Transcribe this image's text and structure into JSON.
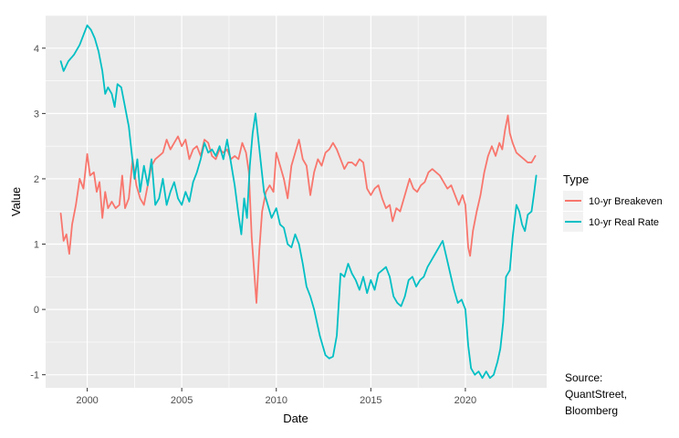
{
  "chart_data": {
    "type": "line",
    "title": "",
    "xlabel": "Date",
    "ylabel": "Value",
    "xlim": [
      1997.8,
      2024.3
    ],
    "ylim": [
      -1.2,
      4.5
    ],
    "x_ticks": [
      2000,
      2005,
      2010,
      2015,
      2020
    ],
    "x_tick_labels": [
      "2000",
      "2005",
      "2010",
      "2015",
      "2020"
    ],
    "y_ticks": [
      -1,
      0,
      1,
      2,
      3,
      4
    ],
    "y_tick_labels": [
      "-1",
      "0",
      "1",
      "2",
      "3",
      "4"
    ],
    "grid": true,
    "legend": {
      "title": "Type",
      "position": "right"
    },
    "series": [
      {
        "name": "10-yr Breakeven",
        "color": "#F8766D",
        "points": [
          [
            1998.6,
            1.47
          ],
          [
            1998.75,
            1.05
          ],
          [
            1998.9,
            1.15
          ],
          [
            1999.05,
            0.85
          ],
          [
            1999.2,
            1.3
          ],
          [
            1999.4,
            1.6
          ],
          [
            1999.6,
            2.0
          ],
          [
            1999.8,
            1.85
          ],
          [
            2000.0,
            2.38
          ],
          [
            2000.15,
            2.05
          ],
          [
            2000.35,
            2.1
          ],
          [
            2000.5,
            1.8
          ],
          [
            2000.65,
            1.95
          ],
          [
            2000.8,
            1.4
          ],
          [
            2000.95,
            1.8
          ],
          [
            2001.1,
            1.55
          ],
          [
            2001.3,
            1.65
          ],
          [
            2001.5,
            1.55
          ],
          [
            2001.7,
            1.6
          ],
          [
            2001.85,
            2.05
          ],
          [
            2002.0,
            1.55
          ],
          [
            2002.2,
            1.7
          ],
          [
            2002.4,
            2.3
          ],
          [
            2002.6,
            1.9
          ],
          [
            2002.8,
            1.7
          ],
          [
            2003.0,
            1.6
          ],
          [
            2003.2,
            1.9
          ],
          [
            2003.4,
            2.2
          ],
          [
            2003.6,
            2.3
          ],
          [
            2003.8,
            2.35
          ],
          [
            2004.0,
            2.4
          ],
          [
            2004.2,
            2.6
          ],
          [
            2004.4,
            2.45
          ],
          [
            2004.6,
            2.55
          ],
          [
            2004.8,
            2.65
          ],
          [
            2005.0,
            2.5
          ],
          [
            2005.2,
            2.6
          ],
          [
            2005.4,
            2.3
          ],
          [
            2005.6,
            2.45
          ],
          [
            2005.8,
            2.5
          ],
          [
            2006.0,
            2.35
          ],
          [
            2006.2,
            2.6
          ],
          [
            2006.4,
            2.55
          ],
          [
            2006.6,
            2.35
          ],
          [
            2006.8,
            2.3
          ],
          [
            2007.0,
            2.45
          ],
          [
            2007.2,
            2.4
          ],
          [
            2007.4,
            2.45
          ],
          [
            2007.6,
            2.3
          ],
          [
            2007.8,
            2.35
          ],
          [
            2008.0,
            2.3
          ],
          [
            2008.2,
            2.55
          ],
          [
            2008.4,
            2.4
          ],
          [
            2008.55,
            2.1
          ],
          [
            2008.7,
            1.1
          ],
          [
            2008.85,
            0.5
          ],
          [
            2008.95,
            0.1
          ],
          [
            2009.1,
            0.9
          ],
          [
            2009.25,
            1.5
          ],
          [
            2009.45,
            1.8
          ],
          [
            2009.65,
            1.9
          ],
          [
            2009.85,
            1.8
          ],
          [
            2010.0,
            2.4
          ],
          [
            2010.2,
            2.2
          ],
          [
            2010.4,
            2.0
          ],
          [
            2010.6,
            1.7
          ],
          [
            2010.8,
            2.2
          ],
          [
            2011.0,
            2.4
          ],
          [
            2011.2,
            2.6
          ],
          [
            2011.4,
            2.3
          ],
          [
            2011.6,
            2.2
          ],
          [
            2011.8,
            1.75
          ],
          [
            2012.0,
            2.1
          ],
          [
            2012.2,
            2.3
          ],
          [
            2012.4,
            2.2
          ],
          [
            2012.6,
            2.4
          ],
          [
            2012.8,
            2.45
          ],
          [
            2013.0,
            2.55
          ],
          [
            2013.2,
            2.45
          ],
          [
            2013.4,
            2.3
          ],
          [
            2013.6,
            2.15
          ],
          [
            2013.8,
            2.25
          ],
          [
            2014.0,
            2.25
          ],
          [
            2014.2,
            2.2
          ],
          [
            2014.4,
            2.3
          ],
          [
            2014.6,
            2.25
          ],
          [
            2014.8,
            1.85
          ],
          [
            2015.0,
            1.75
          ],
          [
            2015.2,
            1.85
          ],
          [
            2015.4,
            1.9
          ],
          [
            2015.6,
            1.7
          ],
          [
            2015.8,
            1.55
          ],
          [
            2016.0,
            1.6
          ],
          [
            2016.15,
            1.35
          ],
          [
            2016.35,
            1.55
          ],
          [
            2016.55,
            1.5
          ],
          [
            2016.75,
            1.7
          ],
          [
            2016.9,
            1.85
          ],
          [
            2017.05,
            2.0
          ],
          [
            2017.25,
            1.85
          ],
          [
            2017.45,
            1.8
          ],
          [
            2017.65,
            1.9
          ],
          [
            2017.85,
            1.95
          ],
          [
            2018.05,
            2.1
          ],
          [
            2018.25,
            2.15
          ],
          [
            2018.45,
            2.1
          ],
          [
            2018.65,
            2.05
          ],
          [
            2018.85,
            1.95
          ],
          [
            2019.05,
            1.85
          ],
          [
            2019.25,
            1.9
          ],
          [
            2019.45,
            1.75
          ],
          [
            2019.65,
            1.6
          ],
          [
            2019.85,
            1.75
          ],
          [
            2020.0,
            1.6
          ],
          [
            2020.15,
            0.95
          ],
          [
            2020.25,
            0.82
          ],
          [
            2020.4,
            1.2
          ],
          [
            2020.6,
            1.5
          ],
          [
            2020.8,
            1.75
          ],
          [
            2021.0,
            2.1
          ],
          [
            2021.2,
            2.35
          ],
          [
            2021.4,
            2.5
          ],
          [
            2021.6,
            2.35
          ],
          [
            2021.8,
            2.55
          ],
          [
            2021.95,
            2.45
          ],
          [
            2022.1,
            2.75
          ],
          [
            2022.25,
            2.97
          ],
          [
            2022.35,
            2.7
          ],
          [
            2022.5,
            2.55
          ],
          [
            2022.7,
            2.4
          ],
          [
            2022.9,
            2.35
          ],
          [
            2023.1,
            2.3
          ],
          [
            2023.3,
            2.25
          ],
          [
            2023.5,
            2.25
          ],
          [
            2023.7,
            2.35
          ]
        ]
      },
      {
        "name": "10-yr Real Rate",
        "color": "#00BFC4",
        "points": [
          [
            1998.6,
            3.8
          ],
          [
            1998.75,
            3.65
          ],
          [
            1999.0,
            3.8
          ],
          [
            1999.3,
            3.9
          ],
          [
            1999.6,
            4.05
          ],
          [
            1999.8,
            4.2
          ],
          [
            2000.0,
            4.35
          ],
          [
            2000.2,
            4.28
          ],
          [
            2000.4,
            4.15
          ],
          [
            2000.6,
            3.95
          ],
          [
            2000.8,
            3.65
          ],
          [
            2000.95,
            3.3
          ],
          [
            2001.1,
            3.4
          ],
          [
            2001.3,
            3.3
          ],
          [
            2001.45,
            3.1
          ],
          [
            2001.6,
            3.45
          ],
          [
            2001.8,
            3.4
          ],
          [
            2002.0,
            3.1
          ],
          [
            2002.2,
            2.8
          ],
          [
            2002.35,
            2.4
          ],
          [
            2002.5,
            2.0
          ],
          [
            2002.65,
            2.3
          ],
          [
            2002.8,
            1.8
          ],
          [
            2003.0,
            2.2
          ],
          [
            2003.2,
            1.9
          ],
          [
            2003.4,
            2.3
          ],
          [
            2003.6,
            1.6
          ],
          [
            2003.8,
            1.7
          ],
          [
            2004.0,
            2.0
          ],
          [
            2004.2,
            1.6
          ],
          [
            2004.4,
            1.8
          ],
          [
            2004.6,
            1.95
          ],
          [
            2004.8,
            1.7
          ],
          [
            2005.0,
            1.6
          ],
          [
            2005.2,
            1.8
          ],
          [
            2005.4,
            1.65
          ],
          [
            2005.6,
            1.95
          ],
          [
            2005.8,
            2.1
          ],
          [
            2006.0,
            2.3
          ],
          [
            2006.2,
            2.55
          ],
          [
            2006.4,
            2.4
          ],
          [
            2006.6,
            2.45
          ],
          [
            2006.8,
            2.35
          ],
          [
            2007.0,
            2.5
          ],
          [
            2007.2,
            2.3
          ],
          [
            2007.4,
            2.6
          ],
          [
            2007.6,
            2.25
          ],
          [
            2007.8,
            1.9
          ],
          [
            2008.0,
            1.45
          ],
          [
            2008.15,
            1.15
          ],
          [
            2008.3,
            1.7
          ],
          [
            2008.45,
            1.4
          ],
          [
            2008.6,
            2.2
          ],
          [
            2008.75,
            2.7
          ],
          [
            2008.9,
            3.0
          ],
          [
            2009.05,
            2.6
          ],
          [
            2009.2,
            2.2
          ],
          [
            2009.35,
            1.8
          ],
          [
            2009.55,
            1.6
          ],
          [
            2009.75,
            1.4
          ],
          [
            2010.0,
            1.55
          ],
          [
            2010.2,
            1.3
          ],
          [
            2010.4,
            1.25
          ],
          [
            2010.6,
            1.0
          ],
          [
            2010.8,
            0.95
          ],
          [
            2011.0,
            1.15
          ],
          [
            2011.2,
            1.0
          ],
          [
            2011.4,
            0.7
          ],
          [
            2011.6,
            0.35
          ],
          [
            2011.8,
            0.2
          ],
          [
            2012.0,
            0.0
          ],
          [
            2012.15,
            -0.2
          ],
          [
            2012.3,
            -0.4
          ],
          [
            2012.45,
            -0.55
          ],
          [
            2012.6,
            -0.7
          ],
          [
            2012.8,
            -0.75
          ],
          [
            2013.0,
            -0.72
          ],
          [
            2013.2,
            -0.4
          ],
          [
            2013.4,
            0.55
          ],
          [
            2013.6,
            0.5
          ],
          [
            2013.8,
            0.7
          ],
          [
            2014.0,
            0.55
          ],
          [
            2014.2,
            0.45
          ],
          [
            2014.4,
            0.3
          ],
          [
            2014.6,
            0.5
          ],
          [
            2014.8,
            0.25
          ],
          [
            2015.0,
            0.45
          ],
          [
            2015.2,
            0.3
          ],
          [
            2015.4,
            0.55
          ],
          [
            2015.6,
            0.6
          ],
          [
            2015.8,
            0.65
          ],
          [
            2016.0,
            0.5
          ],
          [
            2016.2,
            0.2
          ],
          [
            2016.4,
            0.1
          ],
          [
            2016.6,
            0.05
          ],
          [
            2016.8,
            0.2
          ],
          [
            2017.0,
            0.45
          ],
          [
            2017.2,
            0.5
          ],
          [
            2017.4,
            0.35
          ],
          [
            2017.6,
            0.45
          ],
          [
            2017.8,
            0.5
          ],
          [
            2018.0,
            0.65
          ],
          [
            2018.2,
            0.75
          ],
          [
            2018.4,
            0.85
          ],
          [
            2018.6,
            0.95
          ],
          [
            2018.8,
            1.05
          ],
          [
            2019.0,
            0.8
          ],
          [
            2019.2,
            0.55
          ],
          [
            2019.4,
            0.3
          ],
          [
            2019.6,
            0.1
          ],
          [
            2019.8,
            0.15
          ],
          [
            2020.0,
            0.0
          ],
          [
            2020.15,
            -0.55
          ],
          [
            2020.3,
            -0.9
          ],
          [
            2020.5,
            -1.0
          ],
          [
            2020.7,
            -0.95
          ],
          [
            2020.9,
            -1.05
          ],
          [
            2021.1,
            -0.95
          ],
          [
            2021.3,
            -1.05
          ],
          [
            2021.5,
            -1.0
          ],
          [
            2021.7,
            -0.8
          ],
          [
            2021.85,
            -0.6
          ],
          [
            2022.0,
            -0.2
          ],
          [
            2022.15,
            0.5
          ],
          [
            2022.35,
            0.6
          ],
          [
            2022.5,
            1.1
          ],
          [
            2022.7,
            1.6
          ],
          [
            2022.85,
            1.5
          ],
          [
            2023.0,
            1.3
          ],
          [
            2023.15,
            1.2
          ],
          [
            2023.3,
            1.45
          ],
          [
            2023.5,
            1.5
          ],
          [
            2023.62,
            1.75
          ],
          [
            2023.75,
            2.05
          ]
        ]
      }
    ]
  },
  "source_note": [
    "Source:",
    "QuantStreet,",
    "Bloomberg"
  ]
}
